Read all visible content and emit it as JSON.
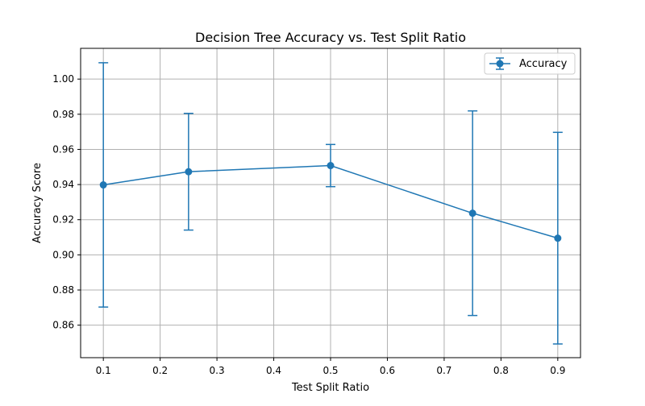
{
  "chart_data": {
    "type": "line",
    "title": "Decision Tree Accuracy vs. Test Split Ratio",
    "xlabel": "Test Split Ratio",
    "ylabel": "Accuracy Score",
    "xlim": [
      0.06,
      0.94
    ],
    "ylim": [
      0.8415,
      1.0175
    ],
    "x_ticks": [
      0.1,
      0.2,
      0.3,
      0.4,
      0.5,
      0.6,
      0.7,
      0.8,
      0.9
    ],
    "x_tick_labels": [
      "0.1",
      "0.2",
      "0.3",
      "0.4",
      "0.5",
      "0.6",
      "0.7",
      "0.8",
      "0.9"
    ],
    "y_ticks": [
      0.86,
      0.88,
      0.9,
      0.92,
      0.94,
      0.96,
      0.98,
      1.0
    ],
    "y_tick_labels": [
      "0.86",
      "0.88",
      "0.90",
      "0.92",
      "0.94",
      "0.96",
      "0.98",
      "1.00"
    ],
    "grid": true,
    "legend_position": "top-right",
    "series": [
      {
        "name": "Accuracy",
        "color": "#1f77b4",
        "x": [
          0.1,
          0.25,
          0.5,
          0.75,
          0.9
        ],
        "y": [
          0.9398,
          0.9473,
          0.9508,
          0.9237,
          0.9095
        ],
        "yerr": [
          0.0695,
          0.0332,
          0.012,
          0.0582,
          0.0602
        ]
      }
    ]
  }
}
